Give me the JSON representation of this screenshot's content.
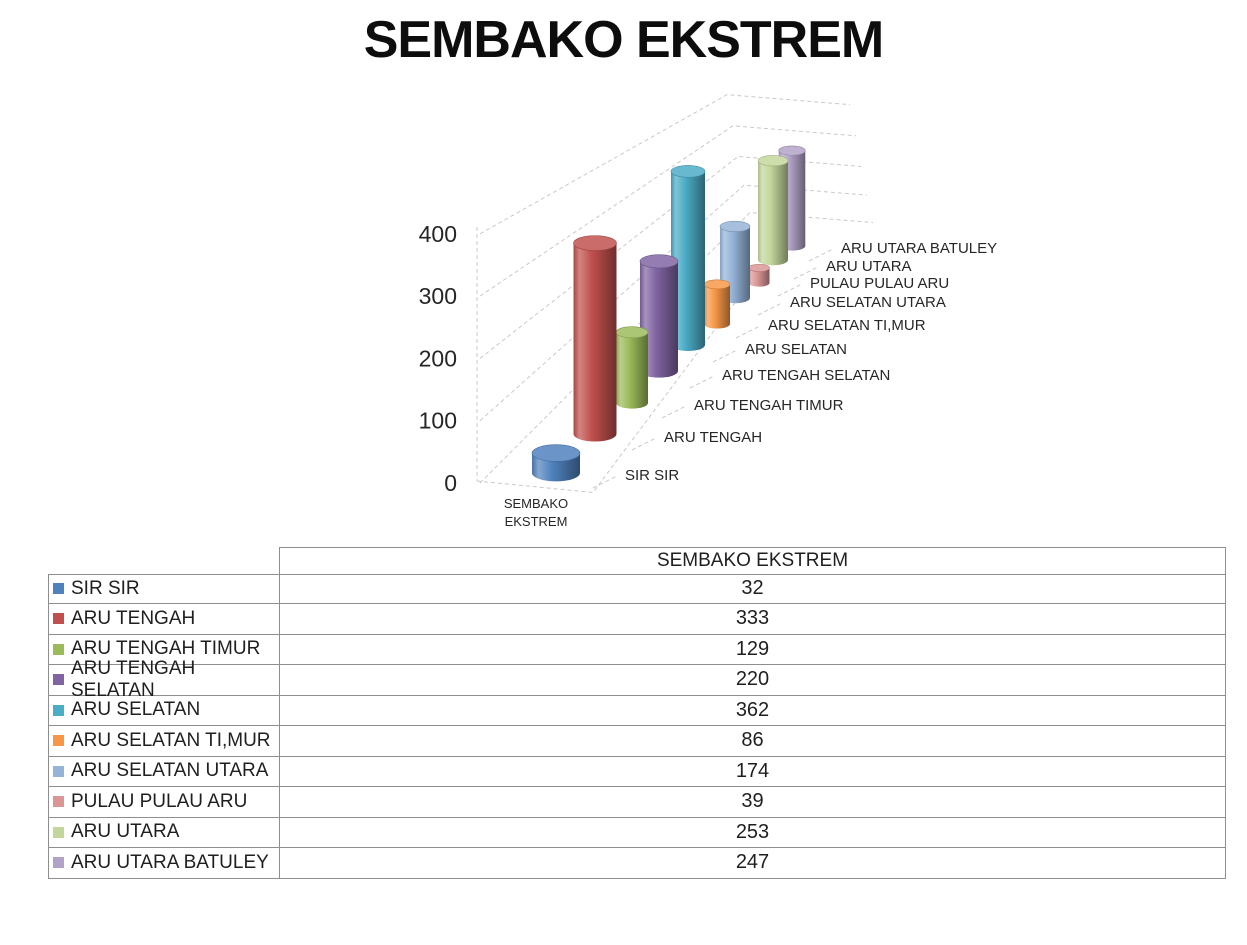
{
  "title": "SEMBAKO EKSTREM",
  "chart_data": {
    "type": "bar",
    "subtype": "3d-cylinder",
    "title": "SEMBAKO EKSTREM",
    "category": "SEMBAKO EKSTREM",
    "category_label_lines": [
      "SEMBAKO",
      "EKSTREM"
    ],
    "ylim": [
      0,
      400
    ],
    "yticks": [
      0,
      100,
      200,
      300,
      400
    ],
    "grid": true,
    "legend_position": "table-left-column",
    "series": [
      {
        "name": "SIR SIR",
        "value": 32,
        "color": "#4F81BD"
      },
      {
        "name": "ARU TENGAH",
        "value": 333,
        "color": "#C0504D"
      },
      {
        "name": "ARU TENGAH TIMUR",
        "value": 129,
        "color": "#9BBB59"
      },
      {
        "name": "ARU TENGAH SELATAN",
        "value": 220,
        "color": "#8064A2"
      },
      {
        "name": "ARU SELATAN",
        "value": 362,
        "color": "#4BACC6"
      },
      {
        "name": "ARU SELATAN TI,MUR",
        "value": 86,
        "color": "#F79646"
      },
      {
        "name": "ARU SELATAN UTARA",
        "value": 174,
        "color": "#95B3D7"
      },
      {
        "name": "PULAU PULAU ARU",
        "value": 39,
        "color": "#D99694"
      },
      {
        "name": "ARU UTARA",
        "value": 253,
        "color": "#C3D69B"
      },
      {
        "name": "ARU UTARA BATULEY",
        "value": 247,
        "color": "#B3A2C7"
      }
    ]
  },
  "table": {
    "value_header": "SEMBAKO EKSTREM"
  }
}
